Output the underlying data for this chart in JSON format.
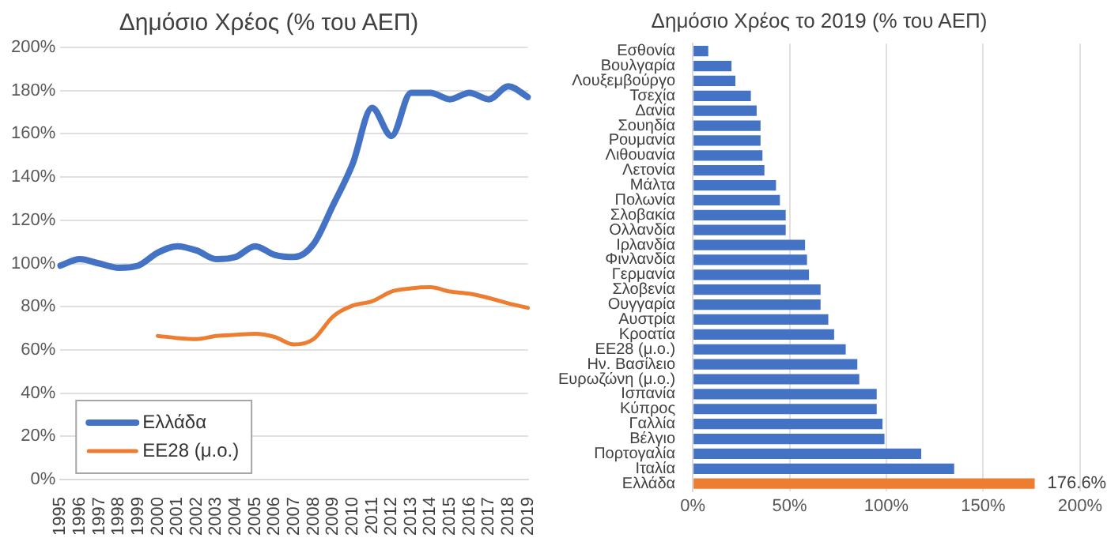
{
  "chart_data": [
    {
      "type": "line",
      "title": "Δημόσιο Χρέος (% του ΑΕΠ)",
      "categories": [
        "1995",
        "1996",
        "1997",
        "1998",
        "1999",
        "2000",
        "2001",
        "2002",
        "2003",
        "2004",
        "2005",
        "2006",
        "2007",
        "2008",
        "2009",
        "2010",
        "2011",
        "2012",
        "2013",
        "2014",
        "2015",
        "2016",
        "2017",
        "2018",
        "2019"
      ],
      "series": [
        {
          "name": "Ελλάδα",
          "color": "#4472c4",
          "values": [
            99,
            102,
            100,
            98,
            99,
            105,
            108,
            106,
            102,
            103,
            108,
            104,
            103,
            109,
            127,
            146,
            172,
            159,
            179,
            179,
            176,
            179,
            176,
            182,
            177
          ]
        },
        {
          "name": "ΕΕ28 (μ.ο.)",
          "color": "#ed7d31",
          "values": [
            null,
            null,
            null,
            null,
            null,
            66.5,
            65.5,
            65,
            66.5,
            67,
            67.5,
            66,
            62.5,
            65,
            75.5,
            80.5,
            82.5,
            87,
            88.5,
            89,
            87,
            86,
            84,
            81.5,
            79.5
          ]
        }
      ],
      "ylim": [
        0,
        200
      ],
      "yticks": [
        {
          "value": 0,
          "label": "0%"
        },
        {
          "value": 20,
          "label": "20%"
        },
        {
          "value": 40,
          "label": "40%"
        },
        {
          "value": 60,
          "label": "60%"
        },
        {
          "value": 80,
          "label": "80%"
        },
        {
          "value": 100,
          "label": "100%"
        },
        {
          "value": 120,
          "label": "120%"
        },
        {
          "value": 140,
          "label": "140%"
        },
        {
          "value": 160,
          "label": "160%"
        },
        {
          "value": 180,
          "label": "180%"
        },
        {
          "value": 200,
          "label": "200%"
        }
      ],
      "grid": "y",
      "legend": "bottom left",
      "marker": "none",
      "line_style": "solid"
    },
    {
      "type": "bar",
      "orientation": "horizontal",
      "title": "Δημόσιο Χρέος το 2019 (% του ΑΕΠ)",
      "categories": [
        "Εσθονία",
        "Βουλγαρία",
        "Λουξεμβούργο",
        "Τσεχία",
        "Δανία",
        "Σουηδία",
        "Ρουμανία",
        "Λιθουανία",
        "Λετονία",
        "Μάλτα",
        "Πολωνία",
        "Σλοβακία",
        "Ολλανδία",
        "Ιρλανδία",
        "Φινλανδία",
        "Γερμανία",
        "Σλοβενία",
        "Ουγγαρία",
        "Αυστρία",
        "Κροατία",
        "ΕΕ28 (μ.ο.)",
        "Ην. Βασίλειο",
        "Ευρωζώνη (μ.ο.)",
        "Ισπανία",
        "Κύπρος",
        "Γαλλία",
        "Βέλγιο",
        "Πορτογαλία",
        "Ιταλία",
        "Ελλάδα"
      ],
      "values": [
        8,
        20,
        22,
        30,
        33,
        35,
        35,
        36,
        37,
        43,
        45,
        48,
        48,
        58,
        59,
        60,
        66,
        66,
        70,
        73,
        79,
        85,
        86,
        95,
        95,
        98,
        99,
        118,
        135,
        176.6
      ],
      "colors": [
        "#4472c4",
        "#4472c4",
        "#4472c4",
        "#4472c4",
        "#4472c4",
        "#4472c4",
        "#4472c4",
        "#4472c4",
        "#4472c4",
        "#4472c4",
        "#4472c4",
        "#4472c4",
        "#4472c4",
        "#4472c4",
        "#4472c4",
        "#4472c4",
        "#4472c4",
        "#4472c4",
        "#4472c4",
        "#4472c4",
        "#4472c4",
        "#4472c4",
        "#4472c4",
        "#4472c4",
        "#4472c4",
        "#4472c4",
        "#4472c4",
        "#4472c4",
        "#4472c4",
        "#ed7d31"
      ],
      "value_labels": [
        null,
        null,
        null,
        null,
        null,
        null,
        null,
        null,
        null,
        null,
        null,
        null,
        null,
        null,
        null,
        null,
        null,
        null,
        null,
        null,
        null,
        null,
        null,
        null,
        null,
        null,
        null,
        null,
        null,
        "176.6%"
      ],
      "xlim": [
        0,
        200
      ],
      "xticks": [
        {
          "value": 0,
          "label": "0%"
        },
        {
          "value": 50,
          "label": "50%"
        },
        {
          "value": 100,
          "label": "100%"
        },
        {
          "value": 150,
          "label": "150%"
        },
        {
          "value": 200,
          "label": "200%"
        }
      ],
      "grid": "x",
      "legend": false
    }
  ]
}
